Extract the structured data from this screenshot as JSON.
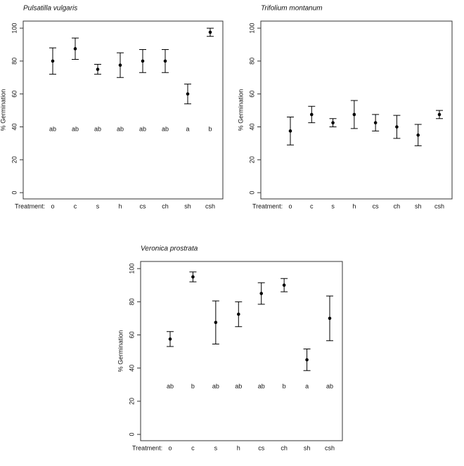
{
  "chart_data": [
    {
      "type": "errorbar",
      "title": "Pulsatilla vulgaris",
      "y_label": "% Germination",
      "x_label": "Treatment:",
      "categories": [
        "o",
        "c",
        "s",
        "h",
        "cs",
        "ch",
        "sh",
        "csh"
      ],
      "values": [
        80,
        87.5,
        75,
        77.5,
        80,
        80,
        60,
        97.5
      ],
      "errors": [
        8,
        6.5,
        3,
        7.5,
        7,
        7,
        6,
        2.5
      ],
      "letters": [
        "ab",
        "ab",
        "ab",
        "ab",
        "ab",
        "ab",
        "a",
        "b"
      ],
      "ylim": [
        -3.8,
        104.3
      ],
      "yticks": [
        0,
        20,
        40,
        60,
        80,
        100
      ],
      "color": "#000000"
    },
    {
      "type": "errorbar",
      "title": "Trifolium montanum",
      "y_label": "% Germination",
      "x_label": "Treatment:",
      "categories": [
        "o",
        "c",
        "s",
        "h",
        "cs",
        "ch",
        "sh",
        "csh"
      ],
      "values": [
        37.5,
        47.5,
        42.5,
        47.5,
        42.5,
        40,
        35,
        47.5
      ],
      "errors": [
        8.5,
        5,
        2.5,
        8.5,
        5,
        7,
        6.5,
        2.5
      ],
      "ylim": [
        -3.8,
        104.3
      ],
      "yticks": [
        0,
        20,
        40,
        60,
        80,
        100
      ],
      "color": "#000000"
    },
    {
      "type": "errorbar",
      "title": "Veronica prostrata",
      "y_label": "% Germination",
      "x_label": "Treatment:",
      "categories": [
        "o",
        "c",
        "s",
        "h",
        "cs",
        "ch",
        "sh",
        "csh"
      ],
      "values": [
        57.5,
        95,
        67.5,
        72.5,
        85,
        90,
        45,
        70
      ],
      "errors": [
        4.5,
        3,
        13,
        7.5,
        6.5,
        4,
        6.5,
        13.5
      ],
      "letters": [
        "ab",
        "b",
        "ab",
        "ab",
        "ab",
        "b",
        "a",
        "ab"
      ],
      "ylim": [
        -3.8,
        104.3
      ],
      "yticks": [
        0,
        20,
        40,
        60,
        80,
        100
      ],
      "color": "#000000"
    }
  ]
}
